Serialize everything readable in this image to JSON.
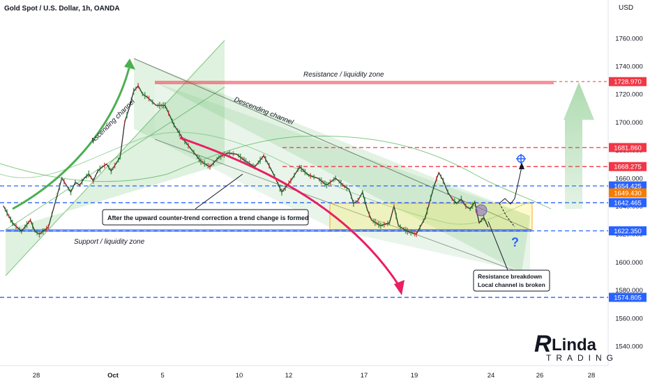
{
  "header": {
    "symbol_title": "Gold Spot / U.S. Dollar, 1h, OANDA",
    "currency": "USD"
  },
  "chart_data": {
    "type": "line",
    "title": "Gold Spot / U.S. Dollar, 1h, OANDA",
    "y_unit": "USD",
    "ylim": [
      1527,
      1795
    ],
    "x_ticks": [
      "28",
      "Oct",
      "5",
      "10",
      "12",
      "17",
      "19",
      "24",
      "26",
      "28"
    ],
    "y_ticks": [
      1540,
      1560,
      1580,
      1600,
      1620,
      1640,
      1660,
      1680,
      1700,
      1720,
      1740,
      1760
    ],
    "price_tags": [
      {
        "label": "1728.970",
        "value": 1728.97,
        "color": "#f23645"
      },
      {
        "label": "1681.860",
        "value": 1681.86,
        "color": "#f23645"
      },
      {
        "label": "1668.275",
        "value": 1668.275,
        "color": "#f23645"
      },
      {
        "label": "1654.425",
        "value": 1654.425,
        "color": "#2962ff"
      },
      {
        "label": "1649.430",
        "value": 1649.43,
        "color": "#f57c00"
      },
      {
        "label": "1642.465",
        "value": 1642.465,
        "color": "#2962ff"
      },
      {
        "label": "1622.350",
        "value": 1622.35,
        "color": "#2962ff"
      },
      {
        "label": "1574.805",
        "value": 1574.805,
        "color": "#2962ff"
      }
    ],
    "series": [
      {
        "x": [
          0,
          2,
          4,
          6,
          7,
          8,
          10,
          12,
          13,
          14,
          15,
          16,
          17,
          18,
          19,
          20,
          21,
          22,
          23,
          24,
          26,
          27,
          28,
          29,
          30,
          31,
          32,
          34,
          36,
          38,
          40,
          42,
          44,
          46,
          48,
          50,
          52,
          54,
          56,
          58,
          60,
          62,
          64,
          66,
          68,
          70,
          72,
          74,
          76,
          77,
          78,
          79,
          80,
          81,
          82,
          84,
          86,
          87,
          88,
          90,
          92,
          94,
          96,
          97,
          98,
          99,
          100,
          101,
          102,
          103,
          104,
          105,
          106,
          107,
          108
        ],
        "values": [
          1640,
          1628,
          1622,
          1630,
          1622,
          1620,
          1625,
          1648,
          1660,
          1655,
          1650,
          1657,
          1655,
          1660,
          1663,
          1658,
          1665,
          1668,
          1670,
          1665,
          1675,
          1700,
          1710,
          1722,
          1726,
          1720,
          1718,
          1712,
          1712,
          1698,
          1688,
          1680,
          1672,
          1668,
          1675,
          1678,
          1677,
          1672,
          1668,
          1676,
          1664,
          1650,
          1658,
          1668,
          1662,
          1660,
          1655,
          1660,
          1654,
          1652,
          1642,
          1644,
          1650,
          1638,
          1630,
          1626,
          1628,
          1640,
          1626,
          1622,
          1620,
          1632,
          1655,
          1664,
          1658,
          1650,
          1645,
          1642,
          1645,
          1640,
          1638,
          1643,
          1628,
          1632,
          1625
        ]
      }
    ],
    "levels": {
      "resistance": 1728.97,
      "red_dashed": [
        1681.86,
        1668.275
      ],
      "blue_dashed": [
        1654.425,
        1642.465,
        1622.35,
        1574.805
      ]
    },
    "annotations": {
      "resistance_zone": "Resistance / liquidity zone",
      "support_zone": "Support / liquidity zone",
      "ascending_channel": "Ascending channel",
      "descending_channel": "Descending channel",
      "trend_change_note": "After the upward counter-trend correction a trend change is formed",
      "breakdown_note_line1": "Resistance breakdown",
      "breakdown_note_line2": "Local channel is broken",
      "question_mark": "?"
    },
    "grid": false
  },
  "brand": {
    "logo_text": "Linda",
    "logo_subtext": "TRADING"
  },
  "colors": {
    "red": "#f23645",
    "blue": "#2962ff",
    "green": "#4caf50",
    "orange": "#f57c00"
  }
}
